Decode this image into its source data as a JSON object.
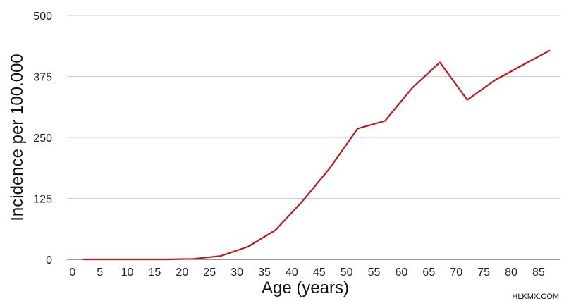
{
  "chart_data": {
    "type": "line",
    "title": "",
    "xlabel": "Age (years)",
    "ylabel": "Incidence per 100.000",
    "xlim": [
      -1,
      89
    ],
    "ylim": [
      0,
      500
    ],
    "xticks": [
      0,
      5,
      10,
      15,
      20,
      25,
      30,
      35,
      40,
      45,
      50,
      55,
      60,
      65,
      70,
      75,
      80,
      85
    ],
    "yticks": [
      0,
      125,
      250,
      375,
      500
    ],
    "ytick_labels": [
      "0",
      "125",
      "250",
      "375",
      "500"
    ],
    "grid": "horizontal",
    "legend": "none",
    "series": [
      {
        "color": "#b71c1c",
        "x": [
          2,
          7,
          12,
          17,
          22,
          27,
          32,
          37,
          42,
          47,
          52,
          57,
          62,
          67,
          72,
          77,
          82,
          87
        ],
        "y": [
          0,
          0,
          0,
          0,
          1,
          7,
          26,
          60,
          120,
          188,
          268,
          284,
          352,
          404,
          327,
          367,
          398,
          428
        ]
      }
    ]
  },
  "watermark": "HLKMX.COM"
}
